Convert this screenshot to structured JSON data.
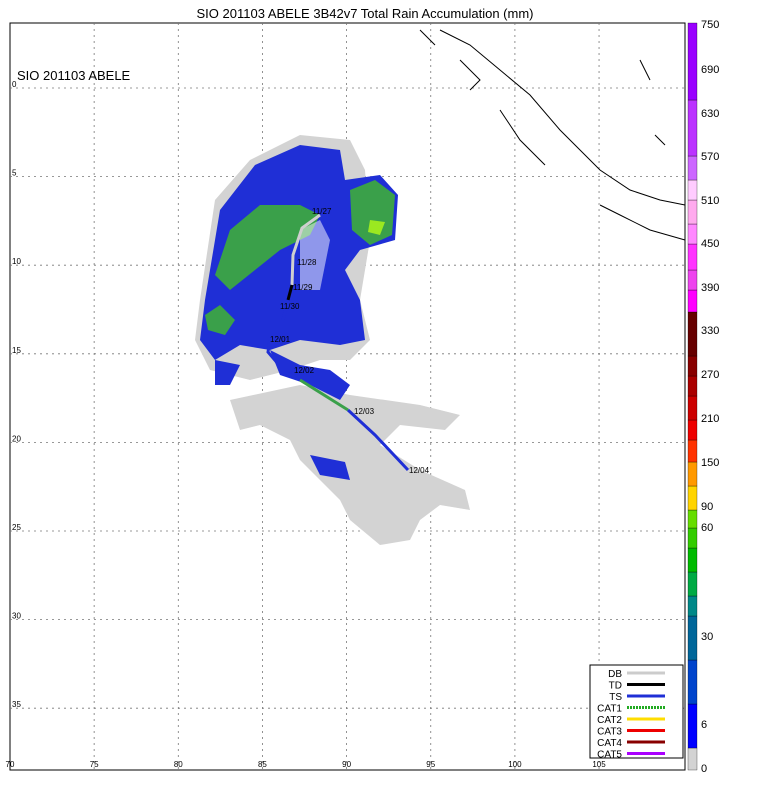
{
  "title": "SIO 201103 ABELE 3B42v7 Total Rain Accumulation (mm)",
  "inset_label": "SIO 201103 ABELE",
  "latitude_labels": [
    0,
    5,
    10,
    15,
    20,
    25,
    30,
    35
  ],
  "longitude_labels": [
    70,
    75,
    80,
    85,
    90,
    95,
    100,
    105
  ],
  "colorbar_labels": [
    750,
    690,
    630,
    570,
    510,
    450,
    390,
    330,
    270,
    210,
    150,
    90,
    60,
    30,
    6,
    0
  ],
  "track_labels": [
    "11/27",
    "11/28",
    "11/29",
    "11/30",
    "12/01",
    "12/02",
    "12/03",
    "12/04"
  ],
  "legend": [
    "DB",
    "TD",
    "TS",
    "CAT1",
    "CAT2",
    "CAT3",
    "CAT4",
    "CAT5"
  ]
}
